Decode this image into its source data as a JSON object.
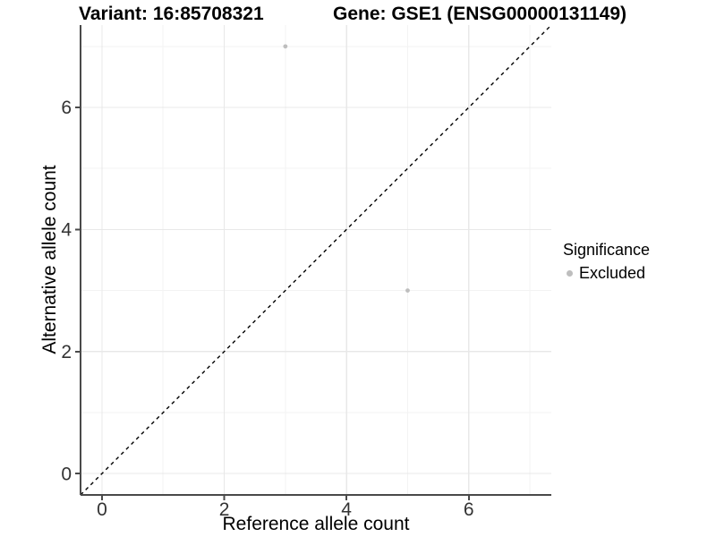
{
  "header": {
    "variant_title": "Variant: 16:85708321",
    "gene_title": "Gene: GSE1 (ENSG00000131149)"
  },
  "legend": {
    "title": "Significance",
    "items": [
      {
        "label": "Excluded",
        "color": "#bebebe"
      }
    ]
  },
  "chart_data": {
    "type": "scatter",
    "title": "",
    "xlabel": "Reference allele count",
    "ylabel": "Alternative allele count",
    "xlim": [
      -0.35,
      7.35
    ],
    "ylim": [
      -0.35,
      7.35
    ],
    "x_ticks": [
      0,
      2,
      4,
      6
    ],
    "y_ticks": [
      0,
      2,
      4,
      6
    ],
    "x_minor_gridlines": [
      1,
      3,
      5,
      7
    ],
    "y_minor_gridlines": [
      1,
      3,
      5,
      7
    ],
    "grid": true,
    "legend_position": "right",
    "series": [
      {
        "name": "Excluded",
        "color": "#bebebe",
        "points": [
          {
            "x": 3,
            "y": 7
          },
          {
            "x": 5,
            "y": 3
          }
        ]
      }
    ],
    "reference_line": {
      "type": "identity",
      "style": "dashed",
      "color": "#000000",
      "from": [
        -0.35,
        -0.35
      ],
      "to": [
        7.35,
        7.35
      ]
    },
    "colors": {
      "major_grid": "#e8e8e8",
      "minor_grid": "#f3f3f3",
      "axis_line": "#4a4a4a",
      "tick_label": "#333333"
    }
  }
}
